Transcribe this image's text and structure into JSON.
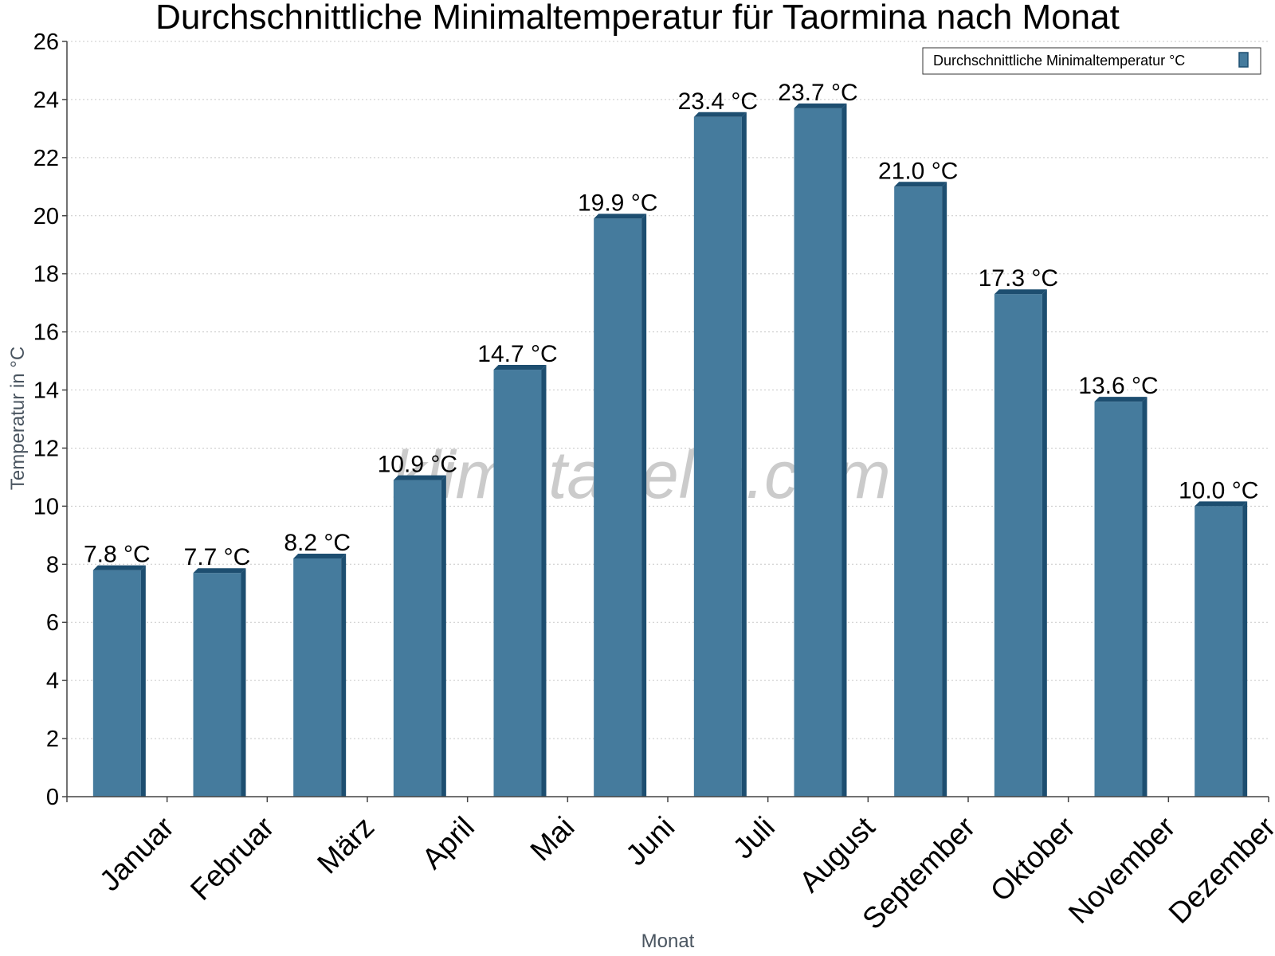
{
  "watermark": "klimatabelle.com",
  "colors": {
    "bar_face": "#457b9d",
    "bar_side": "#1d4e70",
    "bar_top": "#1d4e70",
    "axis": "#444444",
    "grid": "#c8c8c8"
  },
  "chart_data": {
    "type": "bar",
    "title": "Durchschnittliche Minimaltemperatur für Taormina nach Monat",
    "xlabel": "Monat",
    "ylabel": "Temperatur in °C",
    "categories": [
      "Januar",
      "Februar",
      "März",
      "April",
      "Mai",
      "Juni",
      "Juli",
      "August",
      "September",
      "Oktober",
      "November",
      "Dezember"
    ],
    "series": [
      {
        "name": "Durchschnittliche Minimaltemperatur °C",
        "values": [
          7.8,
          7.7,
          8.2,
          10.9,
          14.7,
          19.9,
          23.4,
          23.7,
          21.0,
          17.3,
          13.6,
          10.0
        ],
        "labels": [
          "7.8 °C",
          "7.7 °C",
          "8.2 °C",
          "10.9 °C",
          "14.7 °C",
          "19.9 °C",
          "23.4 °C",
          "23.7 °C",
          "21.0 °C",
          "17.3 °C",
          "13.6 °C",
          "10.0 °C"
        ]
      }
    ],
    "ylim": [
      0,
      26
    ],
    "yticks": [
      0,
      2,
      4,
      6,
      8,
      10,
      12,
      14,
      16,
      18,
      20,
      22,
      24,
      26
    ],
    "grid": true,
    "legend_position": "top-right"
  }
}
